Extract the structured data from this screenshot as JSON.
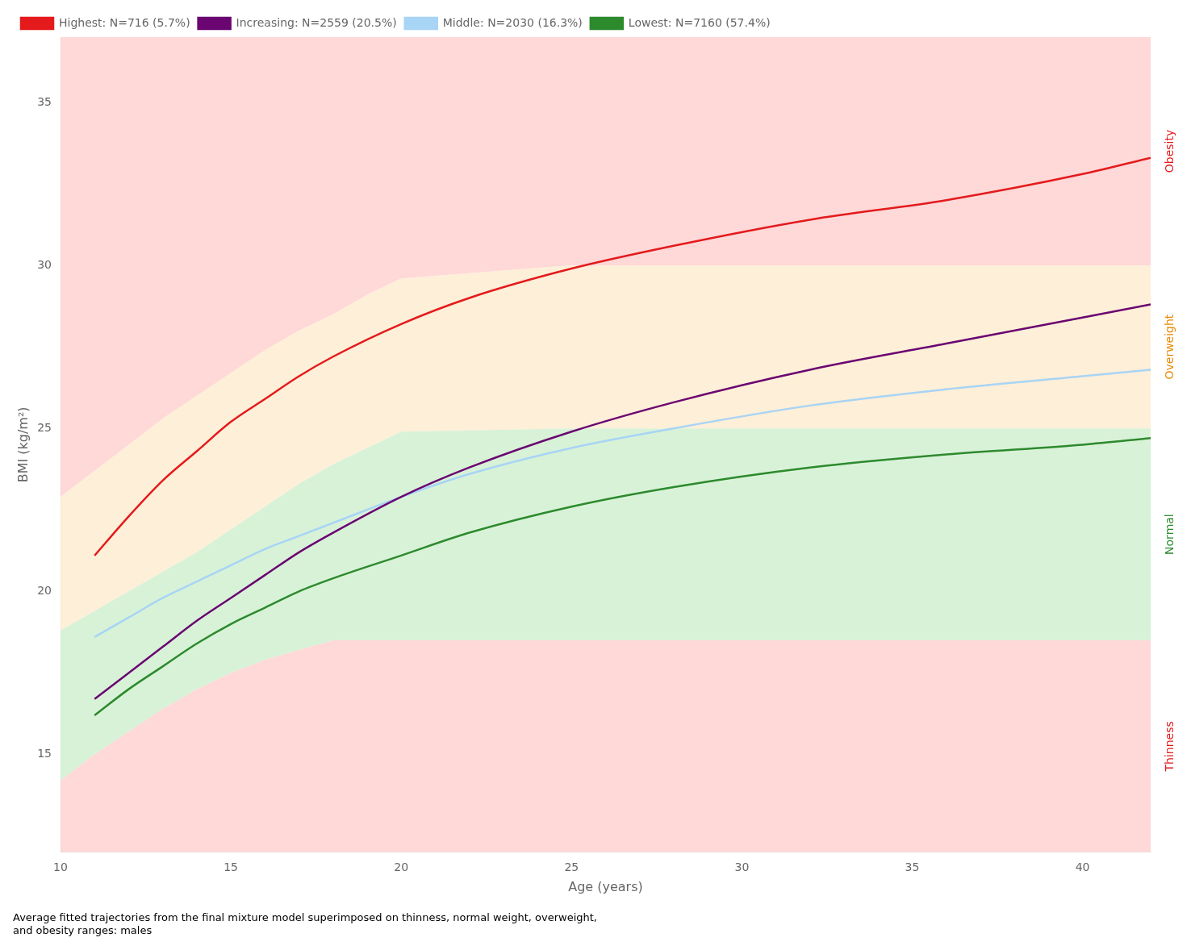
{
  "chart_data": {
    "type": "line",
    "xlabel": "Age (years)",
    "ylabel": "BMI (kg/m²)",
    "caption": "Average fitted trajectories from the final mixture model superimposed on thinness, normal weight, overweight,\nand obesity ranges: males",
    "x": [
      11,
      12,
      13,
      14,
      15,
      16,
      17,
      18,
      20,
      22,
      25,
      28,
      32,
      36,
      40,
      42
    ],
    "series": [
      {
        "name": "Highest: N=716 (5.7%)",
        "color": "#e41a1c",
        "values": [
          21.1,
          22.3,
          23.4,
          24.3,
          25.2,
          25.9,
          26.6,
          27.2,
          28.2,
          29.0,
          29.9,
          30.6,
          31.4,
          32.0,
          32.8,
          33.3
        ]
      },
      {
        "name": "Increasing: N=2559 (20.5%)",
        "color": "#6a0572",
        "values": [
          16.7,
          17.5,
          18.3,
          19.1,
          19.8,
          20.5,
          21.2,
          21.8,
          22.9,
          23.8,
          24.9,
          25.8,
          26.8,
          27.6,
          28.4,
          28.8
        ]
      },
      {
        "name": "Middle: N=2030 (16.3%)",
        "color": "#a8d4f5",
        "values": [
          18.6,
          19.2,
          19.8,
          20.3,
          20.8,
          21.3,
          21.7,
          22.1,
          22.9,
          23.6,
          24.4,
          25.0,
          25.7,
          26.2,
          26.6,
          26.8
        ]
      },
      {
        "name": "Lowest: N=7160 (57.4%)",
        "color": "#2d8a2d",
        "values": [
          16.2,
          17.0,
          17.7,
          18.4,
          19.0,
          19.5,
          20.0,
          20.4,
          21.1,
          21.8,
          22.6,
          23.2,
          23.8,
          24.2,
          24.5,
          24.7
        ]
      }
    ],
    "zones": {
      "names": [
        "Thinness",
        "Normal",
        "Overweight",
        "Obesity"
      ],
      "colors": [
        "#ffc8c8",
        "#c8edc8",
        "#fde8c8",
        "#ffc8c8"
      ],
      "label_colors": [
        "#e41a1c",
        "#2d8a2d",
        "#e88a00",
        "#e41a1c"
      ],
      "x": [
        10,
        11,
        12,
        13,
        14,
        15,
        16,
        17,
        18,
        19,
        20,
        25,
        30,
        35,
        40,
        42
      ],
      "boundaries": [
        [
          14.2,
          15.0,
          15.7,
          16.4,
          17.0,
          17.5,
          17.9,
          18.2,
          18.5,
          18.5,
          18.5,
          18.5,
          18.5,
          18.5,
          18.5,
          18.5
        ],
        [
          18.8,
          19.4,
          20.0,
          20.6,
          21.2,
          21.9,
          22.6,
          23.3,
          23.9,
          24.4,
          24.9,
          25.0,
          25.0,
          25.0,
          25.0,
          25.0
        ],
        [
          22.9,
          23.7,
          24.5,
          25.3,
          26.0,
          26.7,
          27.4,
          28.0,
          28.5,
          29.1,
          29.6,
          30.0,
          30.0,
          30.0,
          30.0,
          30.0
        ]
      ]
    },
    "xlim": [
      10,
      42
    ],
    "xticks": [
      10,
      15,
      20,
      25,
      30,
      35,
      40
    ],
    "ylim": [
      12,
      37
    ],
    "yticks": [
      15,
      20,
      25,
      30,
      35
    ],
    "grid": false,
    "legend": "upper left"
  }
}
